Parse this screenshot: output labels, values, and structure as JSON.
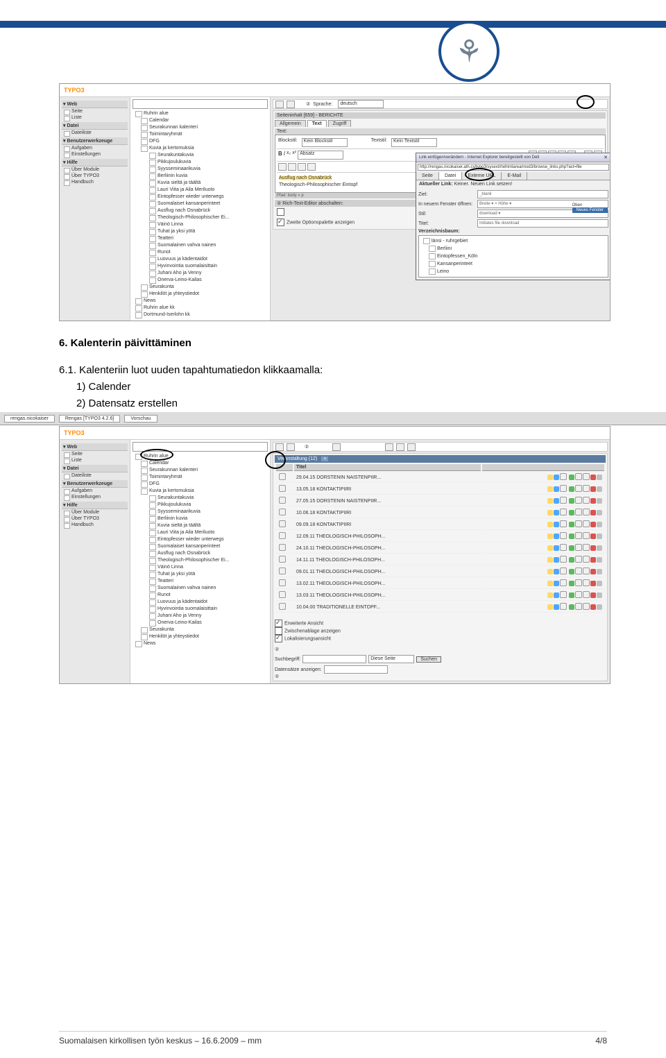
{
  "header": {
    "bar_color": "#1a4d8f"
  },
  "screenshot1": {
    "logo": "TYPO3",
    "nav": {
      "sections": [
        {
          "title": "Web",
          "items": [
            "Seite",
            "Liste"
          ]
        },
        {
          "title": "Datei",
          "items": [
            "Dateiliste"
          ]
        },
        {
          "title": "Benutzerwerkzeuge",
          "items": [
            "Aufgaben",
            "Einstellungen"
          ]
        },
        {
          "title": "Hilfe",
          "items": [
            "Über Module",
            "Über TYPO3",
            "Handbuch"
          ]
        }
      ]
    },
    "tree": [
      {
        "label": "Ruhrin alue",
        "l": 0
      },
      {
        "label": "Calendar",
        "l": 1
      },
      {
        "label": "Seurakunnan kalenteri",
        "l": 1
      },
      {
        "label": "Toimintaryhmät",
        "l": 1
      },
      {
        "label": "DFG",
        "l": 1
      },
      {
        "label": "Kuvia ja kertomuksia",
        "l": 1
      },
      {
        "label": "Seurakuntakuvia",
        "l": 2
      },
      {
        "label": "Pikkujoulukuvia",
        "l": 2
      },
      {
        "label": "Syysseminaarikuvia",
        "l": 2
      },
      {
        "label": "Berliinin kuvia",
        "l": 2
      },
      {
        "label": "Kuvia sieltä ja täältä",
        "l": 2
      },
      {
        "label": "Lauri Viita ja Aila Meriluoto",
        "l": 2
      },
      {
        "label": "Eintopfesser wieder unterwegs",
        "l": 2
      },
      {
        "label": "Suomalaiset kansanperinteet",
        "l": 2
      },
      {
        "label": "Ausflug nach Osnabrück",
        "l": 2
      },
      {
        "label": "Theologisch-Philosophischer Ei...",
        "l": 2
      },
      {
        "label": "Väinö Linna",
        "l": 2
      },
      {
        "label": "Tuhat ja yksi yötä",
        "l": 2
      },
      {
        "label": "Teatteri",
        "l": 2
      },
      {
        "label": "Suomalainen vahva nainen",
        "l": 2
      },
      {
        "label": "Runot",
        "l": 2
      },
      {
        "label": "Luovuus ja kädentaidot",
        "l": 2
      },
      {
        "label": "Hyvinvointia suomalaisittain",
        "l": 2
      },
      {
        "label": "Juhani Aho ja Venny",
        "l": 2
      },
      {
        "label": "Onerva-Leino-Kailas",
        "l": 2
      },
      {
        "label": "Seurakunta",
        "l": 1
      },
      {
        "label": "Henkilöt ja yhteystiedot",
        "l": 1
      },
      {
        "label": "News",
        "l": 0
      },
      {
        "label": "Ruhrin alue kk",
        "l": 0
      },
      {
        "label": "Dortmund-Iserlohn kk",
        "l": 0
      }
    ],
    "main": {
      "language_label": "Sprache:",
      "language_value": "deutsch",
      "content_header": "Seiteninhalt [659] - BERICHTE",
      "tabs": [
        "Allgemein",
        "Text",
        "Zugriff"
      ],
      "active_tab": 1,
      "text_label": "Text:",
      "blockstil_label": "Blockstil:",
      "blockstil_value": "Kein Blockstil",
      "textstil_label": "Textstil:",
      "textstil_value": "Kein Textstil",
      "absatz": "Absatz",
      "rte_line1": "Ausflug nach Osnabrück",
      "rte_line2": "Theologisch-Philosophischer Eintopf",
      "path": "Pfad: body » p",
      "rte_disable": "Rich-Text-Editor abschalten:",
      "second_palette": "Zweite Optionspalette anzeigen"
    },
    "popup": {
      "title": "Link einfügen/verändern - Internet Explorer bereitgestellt von Dell",
      "url": "http://rengas.nicokaiser.ath.cx/typo3/sysext/rtehtmlarea/mod3/browse_links.php?act=file",
      "tabs": [
        "Seite",
        "Datei",
        "Externe URL",
        "E-Mail"
      ],
      "active": 1,
      "current_link_label": "Aktueller Link:",
      "current_link": "Keiner. Neuen Link setzen!",
      "rows": [
        {
          "label": "Ziel:",
          "value": "_blank"
        },
        {
          "label": "In neuem Fenster öffnen:",
          "value": "Breite ▾  ×  Höhe ▾"
        },
        {
          "label": "Stil:",
          "value": "download ▾"
        },
        {
          "label": "Titel:",
          "value": "Initiates file download"
        }
      ],
      "side_labels": [
        "Oben",
        "Neues Fenster"
      ],
      "tree_title": "Verzeichnisbaum:",
      "tree": [
        {
          "label": "länsi - ruhrgebiet",
          "l": 0
        },
        {
          "label": "Berliini",
          "l": 1
        },
        {
          "label": "Eintopfessen_Köln",
          "l": 1
        },
        {
          "label": "Kansanperinteet",
          "l": 1
        },
        {
          "label": "Leino",
          "l": 1
        }
      ]
    }
  },
  "body_text": {
    "heading": "6. Kalenterin päivittäminen",
    "p1": "6.1. Kalenteriin luot uuden tapahtumatiedon klikkaamalla:",
    "p2": "1) Calender",
    "p3": "2) Datensatz erstellen"
  },
  "screenshot2": {
    "browser_tabs": [
      "rengas.nicokaiser",
      "Rengas [TYPO3 4.2.6]",
      "Vorschau"
    ],
    "logo": "TYPO3",
    "nav": {
      "sections": [
        {
          "title": "Web",
          "items": [
            "Seite",
            "Liste"
          ]
        },
        {
          "title": "Datei",
          "items": [
            "Dateiliste"
          ]
        },
        {
          "title": "Benutzerwerkzeuge",
          "items": [
            "Aufgaben",
            "Einstellungen"
          ]
        },
        {
          "title": "Hilfe",
          "items": [
            "Über Module",
            "Über TYPO3",
            "Handbuch"
          ]
        }
      ]
    },
    "tree": [
      {
        "label": "Ruhrin alue",
        "l": 0
      },
      {
        "label": "Calendar",
        "l": 1
      },
      {
        "label": "Seurakunnan kalenteri",
        "l": 1
      },
      {
        "label": "Toimintaryhmät",
        "l": 1
      },
      {
        "label": "DFG",
        "l": 1
      },
      {
        "label": "Kuvia ja kertomuksia",
        "l": 1
      },
      {
        "label": "Seurakuntakuvia",
        "l": 2
      },
      {
        "label": "Pikkujoulukuvia",
        "l": 2
      },
      {
        "label": "Syysseminaarikuvia",
        "l": 2
      },
      {
        "label": "Berliinin kuvia",
        "l": 2
      },
      {
        "label": "Kuvia sieltä ja täältä",
        "l": 2
      },
      {
        "label": "Lauri Viita ja Aila Meriluoto",
        "l": 2
      },
      {
        "label": "Eintopfesser wieder unterwegs",
        "l": 2
      },
      {
        "label": "Suomalaiset kansanperinteet",
        "l": 2
      },
      {
        "label": "Ausflug nach Osnabrück",
        "l": 2
      },
      {
        "label": "Theologisch-Philosophischer Ei...",
        "l": 2
      },
      {
        "label": "Väinö Linna",
        "l": 2
      },
      {
        "label": "Tuhat ja yksi yötä",
        "l": 2
      },
      {
        "label": "Teatteri",
        "l": 2
      },
      {
        "label": "Suomalainen vahva nainen",
        "l": 2
      },
      {
        "label": "Runot",
        "l": 2
      },
      {
        "label": "Luovuus ja kädentaidot",
        "l": 2
      },
      {
        "label": "Hyvinvointia suomalaisittain",
        "l": 2
      },
      {
        "label": "Juhani Aho ja Venny",
        "l": 2
      },
      {
        "label": "Onerva-Leino-Kailas",
        "l": 2
      },
      {
        "label": "Seurakunta",
        "l": 1
      },
      {
        "label": "Henkilöt ja yhteystiedot",
        "l": 1
      },
      {
        "label": "News",
        "l": 0
      }
    ],
    "table": {
      "header": "Veranstaltung (12)",
      "plus": "+",
      "col": "Titel",
      "rows": [
        "29.04.15 DORSTENIN NAISTENPIIR...",
        "13.05.18 KONTAKTIPIIRI",
        "27.05.15 DORSTENIN NAISTENPIIR...",
        "10.06.18 KONTAKTIPIIRI",
        "09.09.18 KONTAKTIPIIRI",
        "12.09.11 THEOLOGISCH-PHILOSOPH...",
        "24.10.11 THEOLOGISCH-PHILOSOPH...",
        "14.11.11 THEOLOGISCH-PHILOSOPH...",
        "09.01.11 THEOLOGISCH-PHILOSOPH...",
        "13.02.11 THEOLOGISCH-PHILOSOPH...",
        "13.03.11 THEOLOGISCH-PHILOSOPH...",
        "10.04.00 TRADITIONELLE EINTOPF..."
      ]
    },
    "opts": [
      {
        "label": "Erweiterte Ansicht",
        "checked": true
      },
      {
        "label": "Zwischenablage anzeigen",
        "checked": false
      },
      {
        "label": "Lokalisierungsansicht",
        "checked": true
      }
    ],
    "search": {
      "label": "Suchbegriff:",
      "scope": "Diese Seite",
      "button": "Suchen"
    },
    "show": "Datensätze anzeigen:"
  },
  "footer": {
    "left": "Suomalaisen kirkollisen työn keskus – 16.6.2009 – mm",
    "right": "4/8"
  }
}
